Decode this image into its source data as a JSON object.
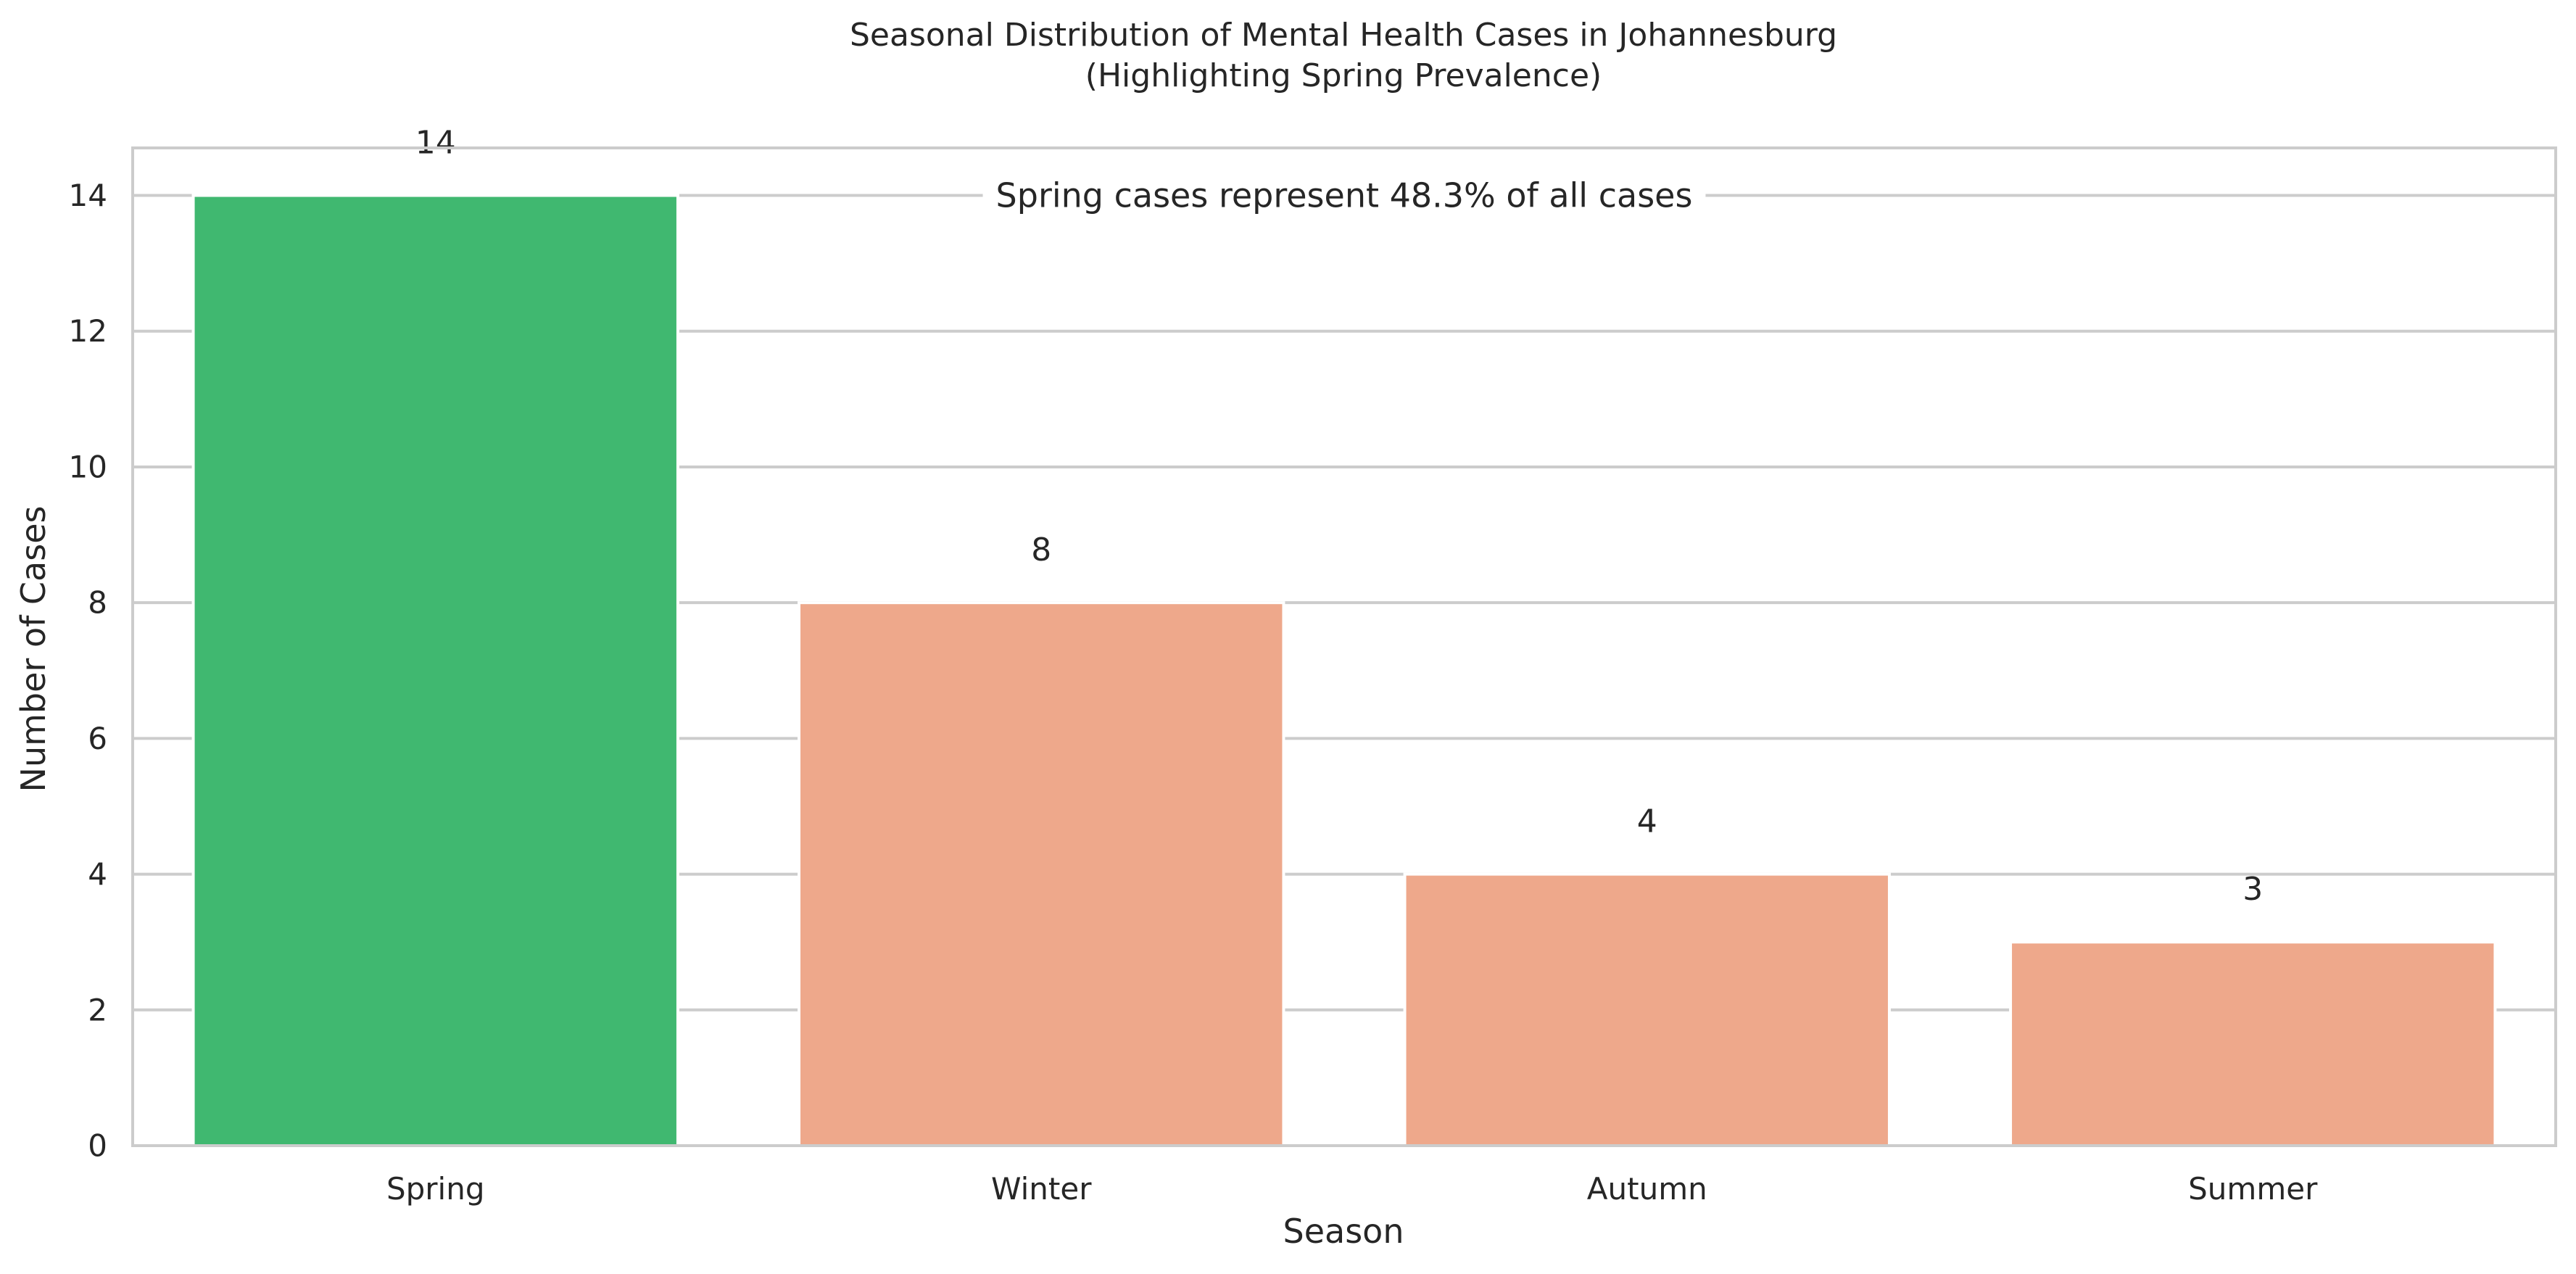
{
  "chart_data": {
    "type": "bar",
    "title": "Seasonal Distribution of Mental Health Cases in Johannesburg",
    "subtitle": "(Highlighting Spring Prevalence)",
    "xlabel": "Season",
    "ylabel": "Number of Cases",
    "categories": [
      "Spring",
      "Winter",
      "Autumn",
      "Summer"
    ],
    "values": [
      14,
      8,
      4,
      3
    ],
    "data_labels": [
      "14",
      "8",
      "4",
      "3"
    ],
    "colors": [
      "#40b870",
      "#eea88b",
      "#eea88b",
      "#eea88b"
    ],
    "ylim": [
      0,
      14.7
    ],
    "yticks": [
      0,
      2,
      4,
      6,
      8,
      10,
      12,
      14
    ],
    "ytick_labels": [
      "0",
      "2",
      "4",
      "6",
      "8",
      "10",
      "12",
      "14"
    ],
    "grid": "horizontal",
    "annotation": "Spring cases represent 48.3% of all cases"
  }
}
